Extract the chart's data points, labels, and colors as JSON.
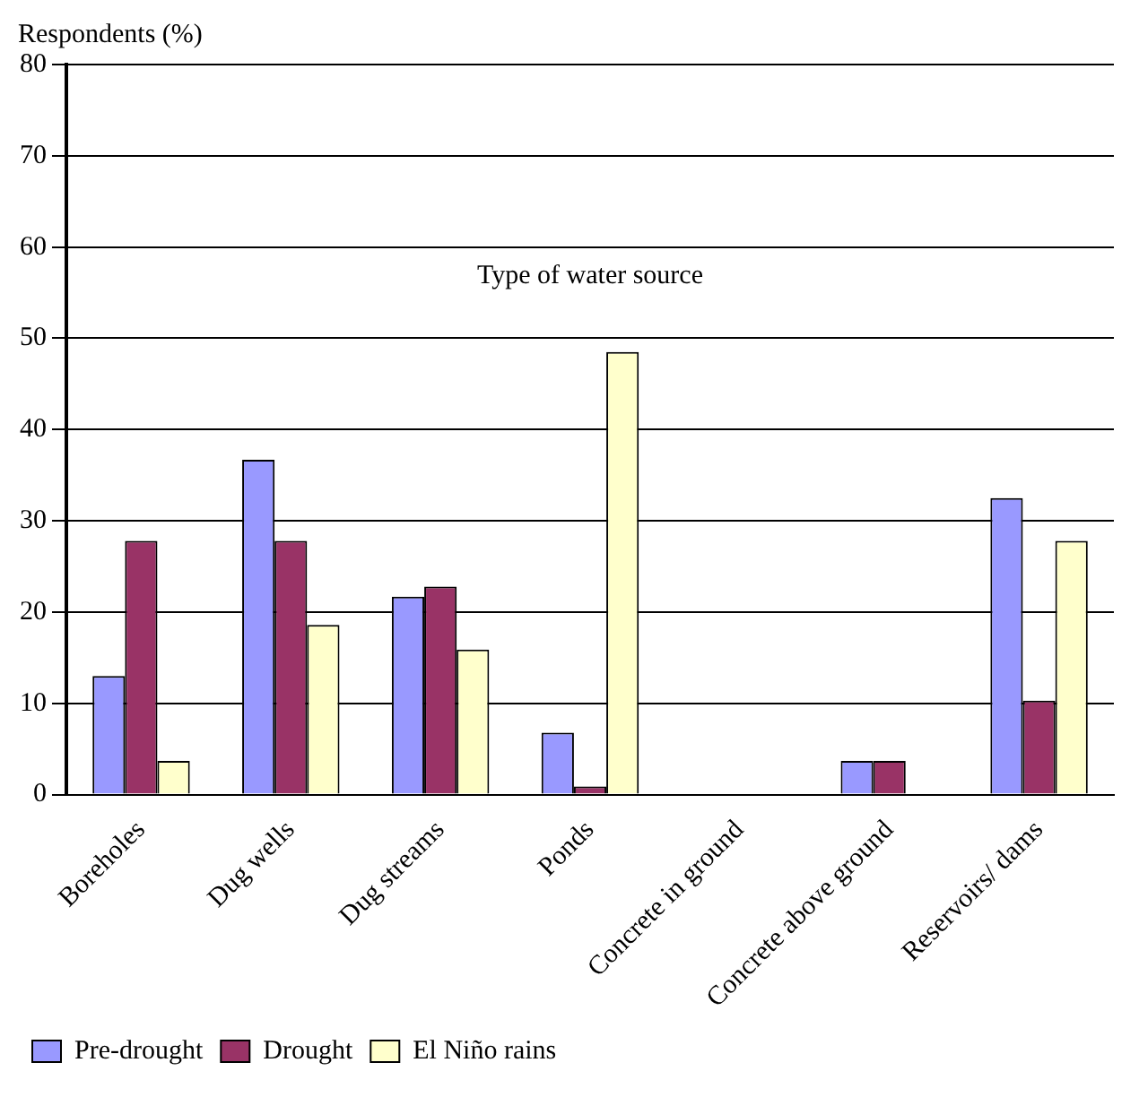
{
  "chart_data": {
    "type": "bar",
    "ylabel": "Respondents (%)",
    "annotations": [
      "Type of water source"
    ],
    "categories": [
      "Boreholes",
      "Dug wells",
      "Dug streams",
      "Ponds",
      "Concrete in ground",
      "Concrete above ground",
      "Reservoirs/ dams"
    ],
    "series": [
      {
        "name": "Pre-drought",
        "color": "#9999ff",
        "values": [
          13,
          36.7,
          21.7,
          6.8,
          0,
          3.7,
          32.5
        ]
      },
      {
        "name": "Drought",
        "color": "#993366",
        "values": [
          27.8,
          27.8,
          22.8,
          0.9,
          0,
          3.7,
          10.3
        ]
      },
      {
        "name": "El Niño rains",
        "color": "#ffffcc",
        "values": [
          3.7,
          18.6,
          15.9,
          48.5,
          0,
          0,
          27.8
        ]
      }
    ],
    "ylim": [
      0,
      80
    ],
    "yticks": [
      0,
      10,
      20,
      30,
      40,
      50,
      60,
      70,
      80
    ],
    "grid": "y",
    "legend": "bottom"
  }
}
